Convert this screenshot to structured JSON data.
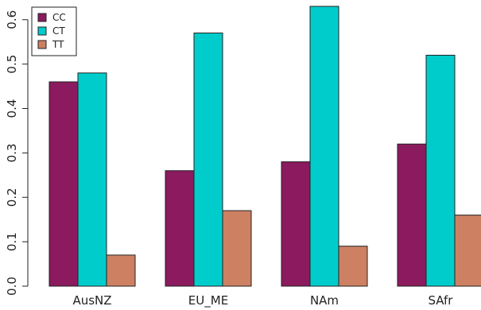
{
  "chart_data": {
    "type": "bar",
    "title": "",
    "xlabel": "",
    "ylabel": "",
    "ylim": [
      0,
      0.63
    ],
    "yticks": [
      "0.0",
      "0.1",
      "0.2",
      "0.3",
      "0.4",
      "0.5",
      "0.6"
    ],
    "grid": false,
    "legend": "top-left",
    "categories": [
      "AusNZ",
      "EU_ME",
      "NAm",
      "SAfr"
    ],
    "series": [
      {
        "name": "CC",
        "color": "#8b1a5e",
        "values": [
          0.46,
          0.26,
          0.28,
          0.32
        ]
      },
      {
        "name": "CT",
        "color": "#00cccc",
        "values": [
          0.48,
          0.57,
          0.63,
          0.52
        ]
      },
      {
        "name": "TT",
        "color": "#cd8062",
        "values": [
          0.07,
          0.17,
          0.09,
          0.16
        ]
      }
    ]
  }
}
